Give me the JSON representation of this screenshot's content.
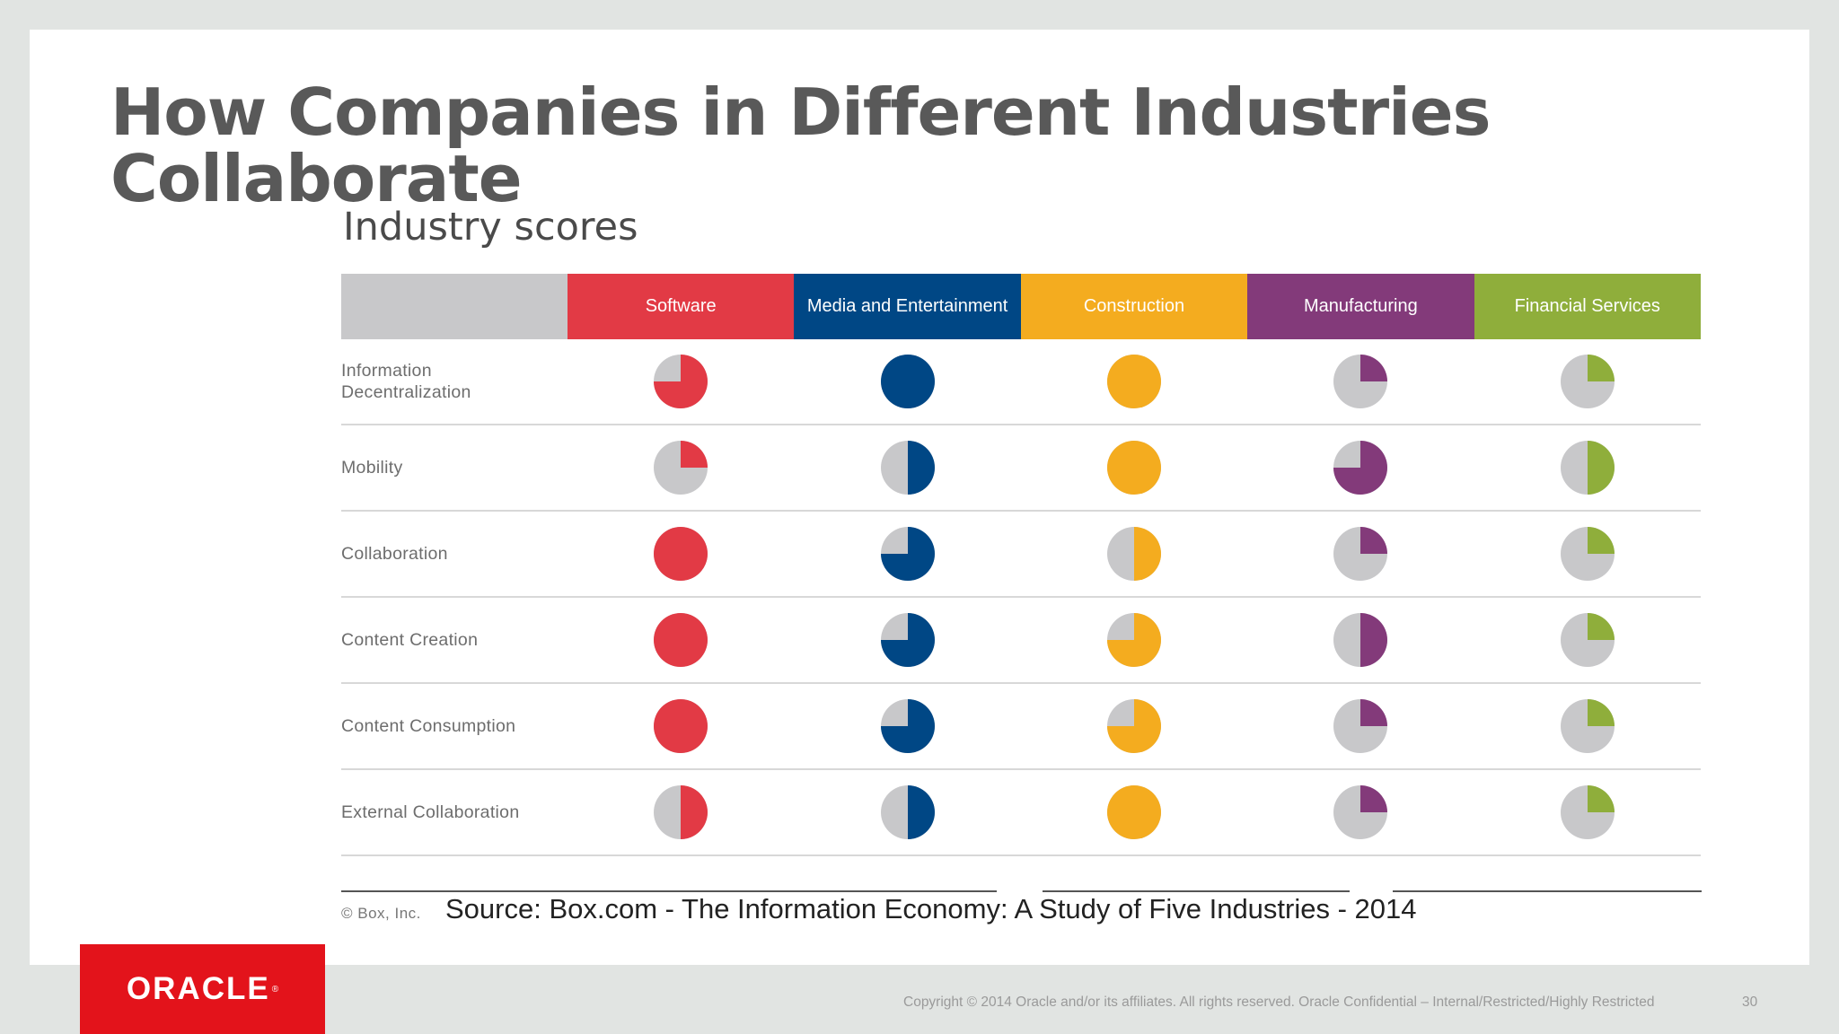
{
  "slide": {
    "title_line1": "How Companies in Different Industries",
    "title_line2": "Collaborate",
    "subtitle": "Industry scores"
  },
  "table": {
    "industries": [
      {
        "name": "Software",
        "color": "#e23a45"
      },
      {
        "name": "Media and Entertainment",
        "color": "#004785"
      },
      {
        "name": "Construction",
        "color": "#f4ac1f"
      },
      {
        "name": "Manufacturing",
        "color": "#833a7a"
      },
      {
        "name": "Financial Services",
        "color": "#8fae3b"
      }
    ],
    "empty_color": "#c8c8ca",
    "rows": [
      {
        "label_lines": [
          "Information",
          "Decentralization"
        ],
        "scores": [
          0.75,
          1.0,
          1.0,
          0.25,
          0.25
        ]
      },
      {
        "label_lines": [
          "Mobility"
        ],
        "scores": [
          0.25,
          0.5,
          1.0,
          0.75,
          0.5
        ]
      },
      {
        "label_lines": [
          "Collaboration"
        ],
        "scores": [
          1.0,
          0.75,
          0.5,
          0.25,
          0.25
        ]
      },
      {
        "label_lines": [
          "Content Creation"
        ],
        "scores": [
          1.0,
          0.75,
          0.75,
          0.5,
          0.25
        ]
      },
      {
        "label_lines": [
          "Content Consumption"
        ],
        "scores": [
          1.0,
          0.75,
          0.75,
          0.25,
          0.25
        ]
      },
      {
        "label_lines": [
          "External Collaboration"
        ],
        "scores": [
          0.5,
          0.5,
          1.0,
          0.25,
          0.25
        ]
      }
    ]
  },
  "credits": {
    "box_copyright": "© Box, Inc.",
    "source": "Source: Box.com - The Information Economy: A Study of Five Industries - 2014"
  },
  "branding": {
    "logo_text": "ORACLE",
    "logo_mark": "®",
    "logo_color": "#e3131b"
  },
  "footer": {
    "copyright": "Copyright © 2014 Oracle and/or its affiliates. All rights reserved.  Oracle Confidential – Internal/Restricted/Highly Restricted",
    "page_number": "30"
  }
}
